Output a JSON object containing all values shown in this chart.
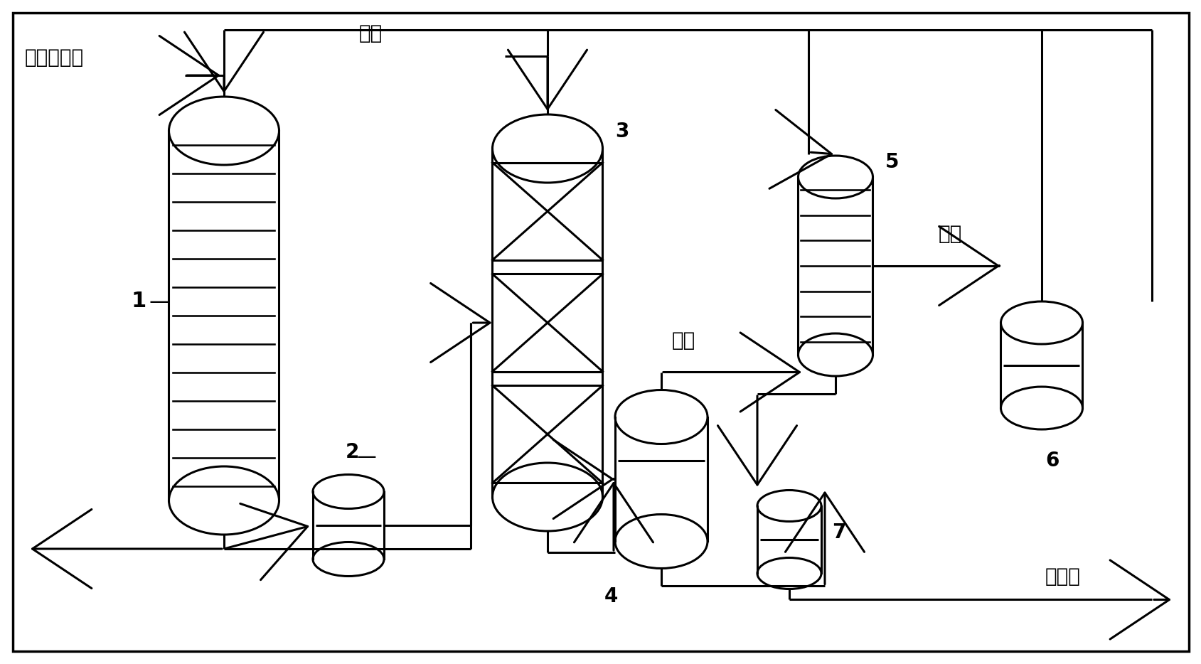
{
  "bg_color": "#ffffff",
  "line_color": "#000000",
  "lw": 2.2,
  "labels": {
    "wuji_acid": "无机酸溶液",
    "h2_left": "氢气",
    "h2_right": "氢气",
    "gas_phase": "气相",
    "acid_solution": "酸溶液",
    "num1": "1",
    "num2": "2",
    "num3": "3",
    "num4": "4",
    "num5": "5",
    "num6": "6",
    "num7": "7"
  },
  "font_size": 20
}
